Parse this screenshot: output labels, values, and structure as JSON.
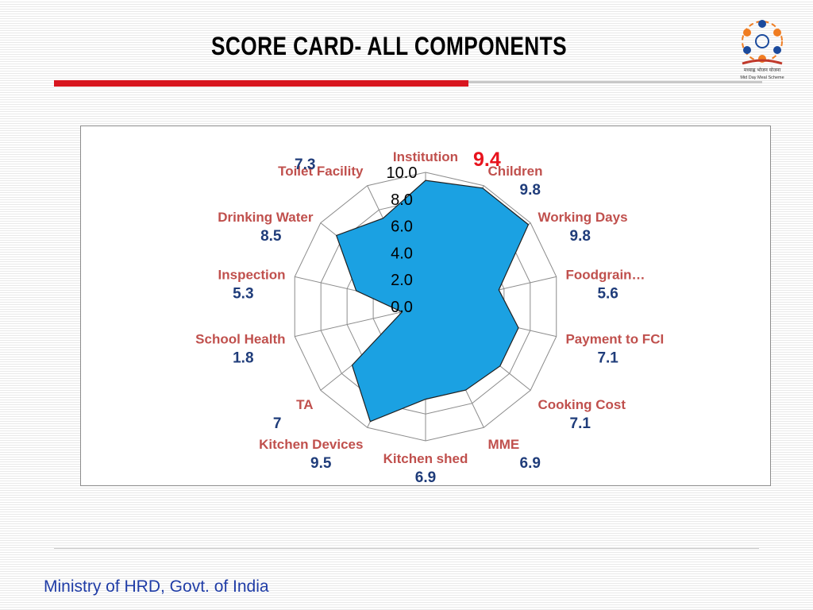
{
  "page": {
    "title": "SCORE CARD- ALL COMPONENTS",
    "footer": "Ministry of HRD, Govt. of India",
    "logo_text_hindi": "मध्याह्न भोजन योजना",
    "logo_text_en": "Mid Day Meal Scheme"
  },
  "colors": {
    "accent_bar": "#d8161f",
    "area_fill": "#1ba1e2",
    "category_label": "#c0504d",
    "value_label": "#1f3c7a",
    "highlight_value": "#e8131d",
    "footer_text": "#1f3ca6"
  },
  "chart_data": {
    "type": "radar",
    "title": "",
    "categories": [
      "Institution",
      "Children",
      "Working Days",
      "Foodgrain…",
      "Payment to FCI",
      "Cooking Cost",
      "MME",
      "Kitchen shed",
      "Kitchen Devices",
      "TA",
      "School Health",
      "Inspection",
      "Drinking Water",
      "Toilet Facility"
    ],
    "values": [
      9.4,
      9.8,
      9.8,
      5.6,
      7.1,
      7.1,
      6.9,
      6.9,
      9.5,
      7,
      1.8,
      5.3,
      8.5,
      7.3
    ],
    "value_labels": [
      "9.4",
      "9.8",
      "9.8",
      "5.6",
      "7.1",
      "7.1",
      "6.9",
      "6.9",
      "9.5",
      "7",
      "1.8",
      "5.3",
      "8.5",
      "7.3"
    ],
    "radial_range": [
      0,
      10
    ],
    "radial_ticks": [
      "0.0",
      "2.0",
      "4.0",
      "6.0",
      "8.0",
      "10.0"
    ],
    "grid": true,
    "legend": "none"
  }
}
